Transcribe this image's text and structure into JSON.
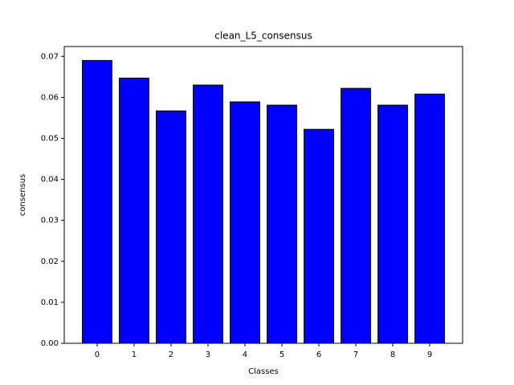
{
  "chart_data": {
    "type": "bar",
    "title": "clean_L5_consensus",
    "xlabel": "Classes",
    "ylabel": "consensus",
    "categories": [
      "0",
      "1",
      "2",
      "3",
      "4",
      "5",
      "6",
      "7",
      "8",
      "9"
    ],
    "values": [
      0.069,
      0.0647,
      0.0567,
      0.063,
      0.0589,
      0.0581,
      0.0522,
      0.0622,
      0.0581,
      0.0608
    ],
    "color": "#0000ff",
    "edgecolor": "#000000",
    "ylim": [
      0,
      0.0724
    ],
    "yticks": [
      {
        "value": 0,
        "label": "0.00"
      },
      {
        "value": 0.01,
        "label": "0.01"
      },
      {
        "value": 0.02,
        "label": "0.02"
      },
      {
        "value": 0.03,
        "label": "0.03"
      },
      {
        "value": 0.04,
        "label": "0.04"
      },
      {
        "value": 0.05,
        "label": "0.05"
      },
      {
        "value": 0.06,
        "label": "0.06"
      },
      {
        "value": 0.07,
        "label": "0.07"
      }
    ],
    "grid": false
  }
}
